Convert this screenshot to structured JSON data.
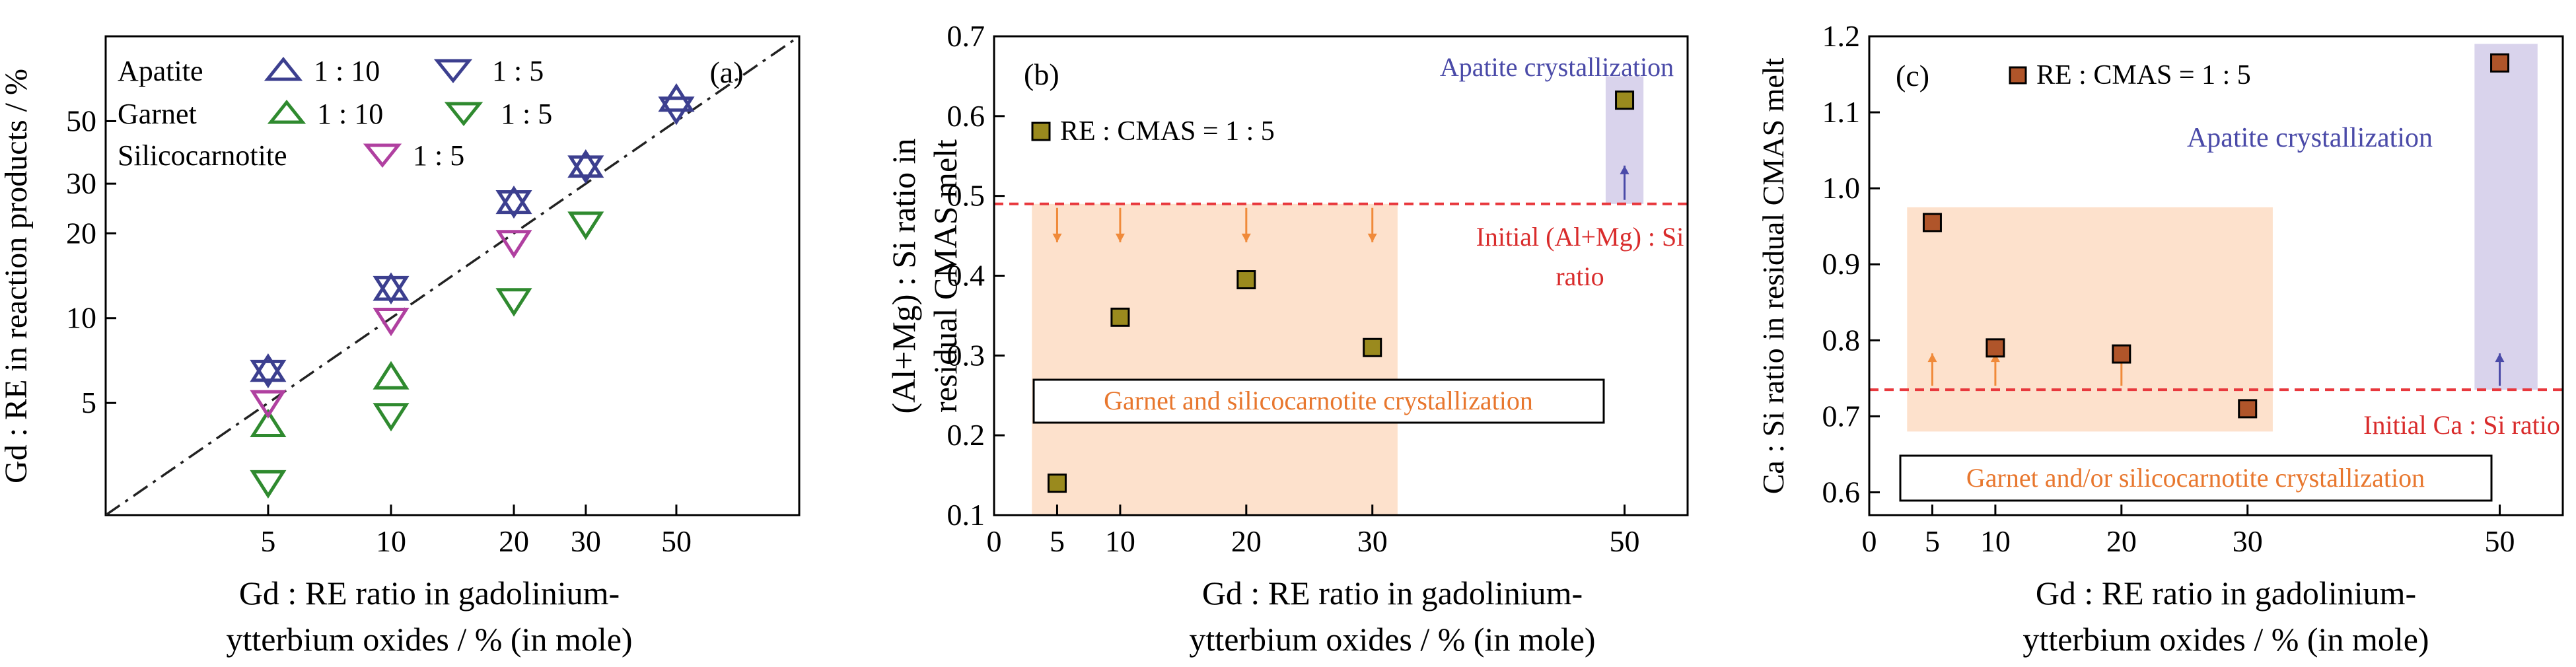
{
  "chart_data": [
    {
      "panel_label": "(a)",
      "type": "scatter",
      "xlabel_lines": [
        "Gd : RE ratio in gadolinium-",
        "ytterbium oxides / % (in mole)"
      ],
      "ylabel": "Gd : RE in reaction products / %",
      "x_scale": "log",
      "y_scale": "log",
      "xlim": [
        2,
        100
      ],
      "ylim": [
        2,
        100
      ],
      "x_ticks": [
        5,
        10,
        20,
        30,
        50
      ],
      "y_ticks": [
        5,
        10,
        20,
        30,
        50
      ],
      "reference_line": "y = x",
      "legend": {
        "apatite": "Apatite",
        "garnet": "Garnet",
        "silicocarnotite": "Silicocarnotite",
        "ratio_1_10": "1 : 10",
        "ratio_1_5": "1 : 5"
      },
      "series": [
        {
          "name": "Apatite 1 : 10",
          "marker": "triangle-up",
          "color": "#3c3f8f",
          "x": [
            5,
            10,
            20,
            30,
            50
          ],
          "y": [
            6.6,
            12.8,
            26,
            35,
            60
          ]
        },
        {
          "name": "Apatite 1 : 5",
          "marker": "triangle-down",
          "color": "#3c3f8f",
          "x": [
            5,
            10,
            20,
            30,
            50
          ],
          "y": [
            6.4,
            12.7,
            25.6,
            34,
            55
          ]
        },
        {
          "name": "Garnet 1 : 10",
          "marker": "triangle-up",
          "color": "#2f8a2f",
          "x": [
            5,
            10
          ],
          "y": [
            4.2,
            6.2
          ]
        },
        {
          "name": "Garnet 1 : 5",
          "marker": "triangle-down",
          "color": "#2f8a2f",
          "x": [
            5,
            10,
            20,
            30
          ],
          "y": [
            2.6,
            4.5,
            11.5,
            21.5
          ]
        },
        {
          "name": "Silicocarnotite 1 : 5",
          "marker": "triangle-down",
          "color": "#b040a0",
          "x": [
            5,
            10,
            20
          ],
          "y": [
            5,
            9.8,
            18.5
          ]
        }
      ]
    },
    {
      "panel_label": "(b)",
      "type": "scatter",
      "xlabel_lines": [
        "Gd : RE ratio in gadolinium-",
        "ytterbium oxides / % (in mole)"
      ],
      "ylabel_lines": [
        "(Al+Mg) : Si ratio in",
        "residual CMAS melt"
      ],
      "xlim": [
        0,
        55
      ],
      "ylim": [
        0.1,
        0.7
      ],
      "x_ticks": [
        0,
        5,
        10,
        20,
        30,
        50
      ],
      "y_ticks": [
        0.1,
        0.2,
        0.3,
        0.4,
        0.5,
        0.6,
        0.7
      ],
      "legend": "RE : CMAS = 1 : 5",
      "series": [
        {
          "name": "RE : CMAS = 1 : 5",
          "x": [
            5,
            10,
            20,
            30,
            50
          ],
          "y": [
            0.14,
            0.348,
            0.395,
            0.31,
            0.62
          ]
        }
      ],
      "reference_value": 0.49,
      "reference_label_lines": [
        "Initial (Al+Mg) : Si",
        "ratio"
      ],
      "region_orange": {
        "x_range": [
          3,
          32
        ],
        "y_range": [
          0.1,
          0.49
        ],
        "label": "Garnet and silicocarnotite crystallization"
      },
      "region_purple": {
        "x_range": [
          48.5,
          51.5
        ],
        "y_range": [
          0.49,
          0.65
        ],
        "label": "Apatite crystallization"
      }
    },
    {
      "panel_label": "(c)",
      "type": "scatter",
      "xlabel_lines": [
        "Gd : RE ratio in gadolinium-",
        "ytterbium oxides / % (in mole)"
      ],
      "ylabel": "Ca : Si ratio in residual CMAS melt",
      "xlim": [
        0,
        55
      ],
      "ylim": [
        0.57,
        1.2
      ],
      "x_ticks": [
        0,
        5,
        10,
        20,
        30,
        50
      ],
      "y_ticks": [
        0.6,
        0.7,
        0.8,
        0.9,
        1.0,
        1.1,
        1.2
      ],
      "legend": "RE : CMAS = 1 : 5",
      "series": [
        {
          "name": "RE : CMAS = 1 : 5",
          "x": [
            5,
            10,
            20,
            30,
            50
          ],
          "y": [
            0.955,
            0.79,
            0.782,
            0.71,
            1.165
          ]
        }
      ],
      "reference_value": 0.735,
      "reference_label": "Initial Ca : Si ratio",
      "region_orange": {
        "x_range": [
          3,
          32
        ],
        "y_range": [
          0.68,
          0.975
        ],
        "label": "Garnet and/or silicocarnotite crystallization"
      },
      "region_purple": {
        "x_range": [
          48,
          53
        ],
        "y_range": [
          0.735,
          1.19
        ],
        "label": "Apatite crystallization"
      }
    }
  ],
  "colors": {
    "apatite": "#3c3f8f",
    "garnet": "#2f8a2f",
    "silicocarnotite": "#b040a0",
    "reference_line": "#e8383d",
    "arrow_orange": "#f08a3a",
    "region_orange": "#fde1cc",
    "region_purple": "#d9d3ec",
    "purple_text": "#4a4aa8",
    "orange_text": "#e8772e",
    "red_text": "#d92c2c",
    "marker_b_fill": "#9a8a1e",
    "marker_c_fill": "#b0552a"
  }
}
